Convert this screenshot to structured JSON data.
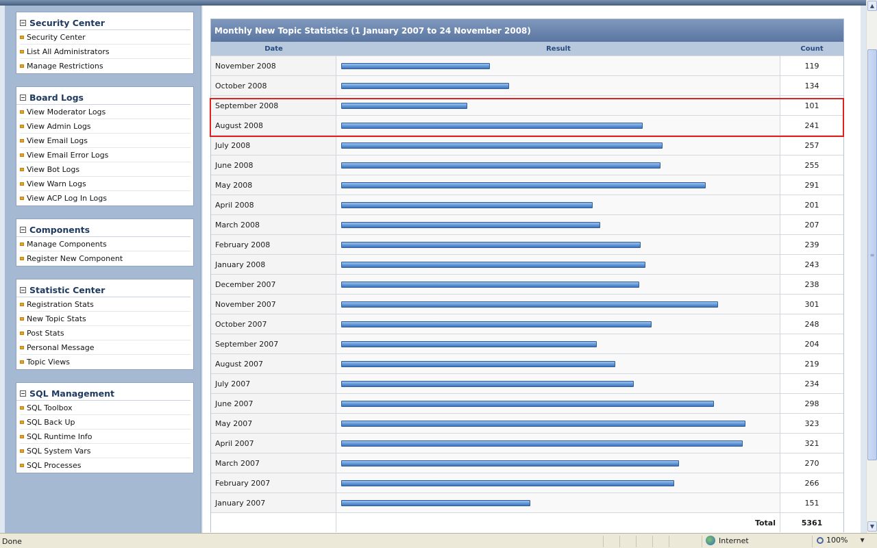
{
  "sidebar": {
    "blocks": [
      {
        "title": "Security Center",
        "items": [
          "Security Center",
          "List All Administrators",
          "Manage Restrictions"
        ]
      },
      {
        "title": "Board Logs",
        "items": [
          "View Moderator Logs",
          "View Admin Logs",
          "View Email Logs",
          "View Email Error Logs",
          "View Bot Logs",
          "View Warn Logs",
          "View ACP Log In Logs"
        ]
      },
      {
        "title": "Components",
        "items": [
          "Manage Components",
          "Register New Component"
        ]
      },
      {
        "title": "Statistic Center",
        "items": [
          "Registration Stats",
          "New Topic Stats",
          "Post Stats",
          "Personal Message",
          "Topic Views"
        ]
      },
      {
        "title": "SQL Management",
        "items": [
          "SQL Toolbox",
          "SQL Back Up",
          "SQL Runtime Info",
          "SQL System Vars",
          "SQL Processes"
        ]
      }
    ]
  },
  "stats": {
    "title": "Monthly New Topic Statistics (1 January 2007 to 24 November 2008)",
    "headers": {
      "date": "Date",
      "result": "Result",
      "count": "Count"
    },
    "bar_max": 323,
    "rows": [
      {
        "date": "November 2008",
        "count": "119",
        "value": 119
      },
      {
        "date": "October 2008",
        "count": "134",
        "value": 134
      },
      {
        "date": "September 2008",
        "count": "101",
        "value": 101
      },
      {
        "date": "August 2008",
        "count": "241",
        "value": 241
      },
      {
        "date": "July 2008",
        "count": "257",
        "value": 257
      },
      {
        "date": "June 2008",
        "count": "255",
        "value": 255
      },
      {
        "date": "May 2008",
        "count": "291",
        "value": 291
      },
      {
        "date": "April 2008",
        "count": "201",
        "value": 201
      },
      {
        "date": "March 2008",
        "count": "207",
        "value": 207
      },
      {
        "date": "February 2008",
        "count": "239",
        "value": 239
      },
      {
        "date": "January 2008",
        "count": "243",
        "value": 243
      },
      {
        "date": "December 2007",
        "count": "238",
        "value": 238
      },
      {
        "date": "November 2007",
        "count": "301",
        "value": 301
      },
      {
        "date": "October 2007",
        "count": "248",
        "value": 248
      },
      {
        "date": "September 2007",
        "count": "204",
        "value": 204
      },
      {
        "date": "August 2007",
        "count": "219",
        "value": 219
      },
      {
        "date": "July 2007",
        "count": "234",
        "value": 234
      },
      {
        "date": "June 2007",
        "count": "298",
        "value": 298
      },
      {
        "date": "May 2007",
        "count": "323",
        "value": 323
      },
      {
        "date": "April 2007",
        "count": "321",
        "value": 321
      },
      {
        "date": "March 2007",
        "count": "270",
        "value": 270
      },
      {
        "date": "February 2007",
        "count": "266",
        "value": 266
      },
      {
        "date": "January 2007",
        "count": "151",
        "value": 151
      }
    ],
    "total_label": "Total",
    "total_value": "5361",
    "highlighted_rows": [
      "September 2008",
      "August 2008"
    ],
    "highlight_color": "#e0201c",
    "bar_color": "#5e92d3"
  },
  "statusbar": {
    "status": "Done",
    "zone": "Internet",
    "zoom": "100%"
  }
}
